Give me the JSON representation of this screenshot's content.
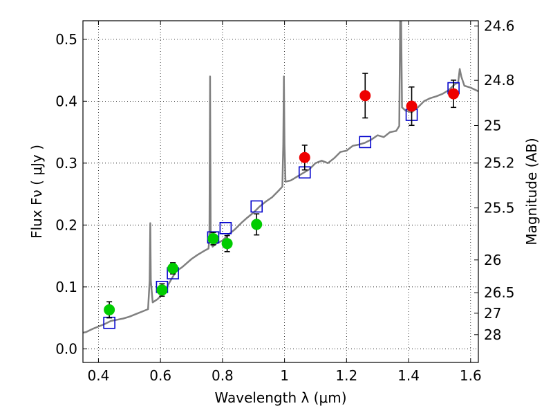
{
  "chart_data": {
    "type": "scatter",
    "xlabel": "Wavelength  λ (μm)",
    "ylabel": "Flux  Fν  ( μJy )",
    "ylabel_right": "Magnitude (AB)",
    "xlim": [
      0.35,
      1.625
    ],
    "ylim": [
      -0.022,
      0.53
    ],
    "grid": true,
    "x_ticks": [
      0.4,
      0.6,
      0.8,
      1.0,
      1.2,
      1.4,
      1.6
    ],
    "x_tick_labels": [
      "0.4",
      "0.6",
      "0.8",
      "1",
      "1.2",
      "1.4",
      "1.6"
    ],
    "y_ticks": [
      0.0,
      0.1,
      0.2,
      0.3,
      0.4,
      0.5
    ],
    "y_tick_labels": [
      "0.0",
      "0.1",
      "0.2",
      "0.3",
      "0.4",
      "0.5"
    ],
    "right_ticks": [
      {
        "label": "24.6",
        "flux": 0.5214
      },
      {
        "label": "24.8",
        "flux": 0.4337
      },
      {
        "label": "25",
        "flux": 0.3607
      },
      {
        "label": "25.2",
        "flux": 0.3001
      },
      {
        "label": "25.5",
        "flux": 0.2276
      },
      {
        "label": "26",
        "flux": 0.1436
      },
      {
        "label": "26.5",
        "flux": 0.0906
      },
      {
        "label": "27",
        "flux": 0.0575
      },
      {
        "label": "28",
        "flux": 0.0229
      }
    ],
    "series": [
      {
        "kind": "line",
        "color": "#808080",
        "points": [
          [
            0.35,
            0.026
          ],
          [
            0.36,
            0.027
          ],
          [
            0.38,
            0.032
          ],
          [
            0.4,
            0.036
          ],
          [
            0.42,
            0.04
          ],
          [
            0.44,
            0.045
          ],
          [
            0.46,
            0.047
          ],
          [
            0.48,
            0.049
          ],
          [
            0.5,
            0.052
          ],
          [
            0.52,
            0.056
          ],
          [
            0.54,
            0.06
          ],
          [
            0.56,
            0.064
          ],
          [
            0.565,
            0.11
          ],
          [
            0.567,
            0.203
          ],
          [
            0.569,
            0.11
          ],
          [
            0.575,
            0.075
          ],
          [
            0.59,
            0.08
          ],
          [
            0.61,
            0.09
          ],
          [
            0.63,
            0.108
          ],
          [
            0.65,
            0.125
          ],
          [
            0.67,
            0.132
          ],
          [
            0.7,
            0.145
          ],
          [
            0.72,
            0.152
          ],
          [
            0.74,
            0.158
          ],
          [
            0.755,
            0.162
          ],
          [
            0.758,
            0.18
          ],
          [
            0.76,
            0.44
          ],
          [
            0.762,
            0.18
          ],
          [
            0.768,
            0.165
          ],
          [
            0.78,
            0.17
          ],
          [
            0.8,
            0.175
          ],
          [
            0.82,
            0.185
          ],
          [
            0.84,
            0.193
          ],
          [
            0.86,
            0.203
          ],
          [
            0.88,
            0.212
          ],
          [
            0.9,
            0.22
          ],
          [
            0.92,
            0.23
          ],
          [
            0.94,
            0.238
          ],
          [
            0.96,
            0.245
          ],
          [
            0.98,
            0.255
          ],
          [
            0.993,
            0.262
          ],
          [
            0.996,
            0.33
          ],
          [
            0.998,
            0.44
          ],
          [
            1.0,
            0.33
          ],
          [
            1.003,
            0.27
          ],
          [
            1.02,
            0.272
          ],
          [
            1.04,
            0.278
          ],
          [
            1.06,
            0.284
          ],
          [
            1.08,
            0.29
          ],
          [
            1.1,
            0.3
          ],
          [
            1.12,
            0.304
          ],
          [
            1.14,
            0.3
          ],
          [
            1.16,
            0.308
          ],
          [
            1.18,
            0.318
          ],
          [
            1.2,
            0.32
          ],
          [
            1.22,
            0.328
          ],
          [
            1.24,
            0.33
          ],
          [
            1.26,
            0.333
          ],
          [
            1.28,
            0.338
          ],
          [
            1.3,
            0.345
          ],
          [
            1.32,
            0.342
          ],
          [
            1.34,
            0.35
          ],
          [
            1.36,
            0.352
          ],
          [
            1.37,
            0.36
          ],
          [
            1.373,
            0.53
          ],
          [
            1.376,
            0.53
          ],
          [
            1.379,
            0.39
          ],
          [
            1.39,
            0.385
          ],
          [
            1.41,
            0.382
          ],
          [
            1.43,
            0.39
          ],
          [
            1.45,
            0.4
          ],
          [
            1.47,
            0.405
          ],
          [
            1.49,
            0.408
          ],
          [
            1.51,
            0.412
          ],
          [
            1.53,
            0.418
          ],
          [
            1.55,
            0.428
          ],
          [
            1.56,
            0.43
          ],
          [
            1.565,
            0.452
          ],
          [
            1.57,
            0.44
          ],
          [
            1.58,
            0.425
          ],
          [
            1.6,
            0.422
          ],
          [
            1.625,
            0.416
          ]
        ]
      },
      {
        "kind": "open-square",
        "color": "#0000cc",
        "points": [
          [
            0.435,
            0.042
          ],
          [
            0.605,
            0.1
          ],
          [
            0.64,
            0.122
          ],
          [
            0.77,
            0.18
          ],
          [
            0.81,
            0.195
          ],
          [
            0.91,
            0.23
          ],
          [
            1.065,
            0.285
          ],
          [
            1.26,
            0.334
          ],
          [
            1.41,
            0.378
          ],
          [
            1.545,
            0.421
          ]
        ]
      },
      {
        "kind": "filled-circle",
        "color": "#00cc00",
        "points": [
          [
            0.435,
            0.063,
            0.013
          ],
          [
            0.605,
            0.095,
            0.01
          ],
          [
            0.64,
            0.13,
            0.009
          ],
          [
            0.77,
            0.178,
            0.01
          ],
          [
            0.815,
            0.17,
            0.013
          ],
          [
            0.91,
            0.201,
            0.017
          ]
        ]
      },
      {
        "kind": "filled-circle",
        "color": "#ee0000",
        "points": [
          [
            1.065,
            0.309,
            0.02
          ],
          [
            1.26,
            0.409,
            0.036
          ],
          [
            1.41,
            0.392,
            0.031
          ],
          [
            1.545,
            0.412,
            0.022
          ]
        ]
      }
    ]
  }
}
